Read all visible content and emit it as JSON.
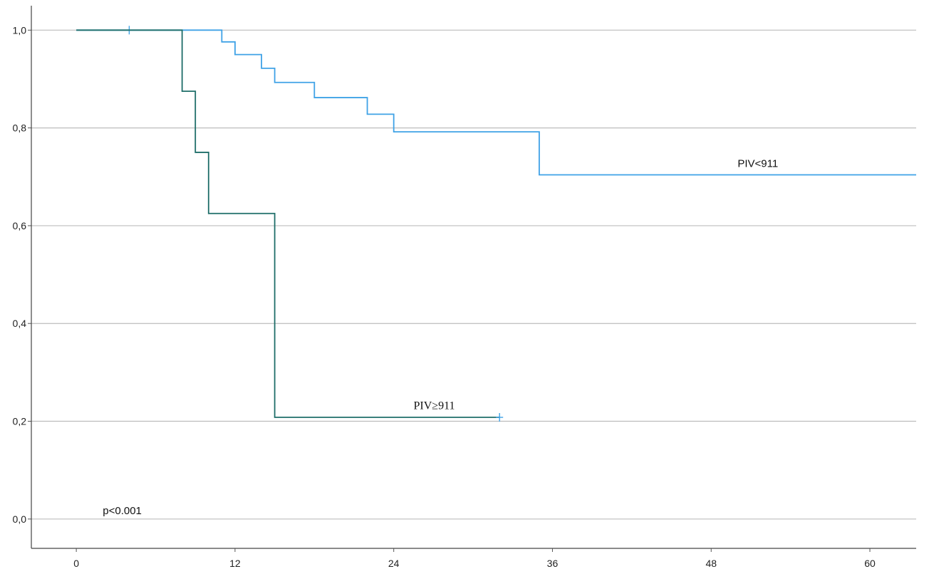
{
  "chart_data": {
    "type": "line",
    "subtype": "kaplan-meier step",
    "title": "",
    "xlabel": "",
    "ylabel": "",
    "xlim": [
      -3.4,
      63.5
    ],
    "ylim": [
      -0.06,
      1.05
    ],
    "x_ticks": [
      0,
      12,
      24,
      36,
      48,
      60
    ],
    "y_ticks": [
      0.0,
      0.2,
      0.4,
      0.6,
      0.8,
      1.0
    ],
    "x_tick_labels": [
      "0",
      "12",
      "24",
      "36",
      "48",
      "60"
    ],
    "y_tick_labels": [
      "0,0",
      "0,2",
      "0,4",
      "0,6",
      "0,8",
      "1,0"
    ],
    "grid": "horizontal",
    "series": [
      {
        "name": "PIV<911",
        "color": "#3fa2e6",
        "step_points": [
          [
            0,
            1.0
          ],
          [
            11,
            0.976
          ],
          [
            12,
            0.95
          ],
          [
            14,
            0.922
          ],
          [
            15,
            0.893
          ],
          [
            18,
            0.862
          ],
          [
            22,
            0.828
          ],
          [
            24,
            0.792
          ],
          [
            35,
            0.704
          ],
          [
            63.5,
            0.704
          ]
        ],
        "censored": [
          [
            4,
            1.0
          ]
        ]
      },
      {
        "name": "PIV≥911",
        "color": "#1f6e69",
        "step_points": [
          [
            0,
            1.0
          ],
          [
            8,
            0.875
          ],
          [
            9,
            0.75
          ],
          [
            10,
            0.625
          ],
          [
            15,
            0.208
          ],
          [
            32,
            0.208
          ]
        ],
        "censored": [
          [
            32,
            0.208
          ]
        ]
      }
    ],
    "annotations": [
      {
        "text": "PIV<911",
        "x": 50,
        "y": 0.72,
        "series": 0
      },
      {
        "text": "PIV≥911",
        "x": 25.5,
        "y": 0.225,
        "series": 1
      },
      {
        "text": "p<0.001",
        "x": 2,
        "y": 0.01
      }
    ]
  }
}
